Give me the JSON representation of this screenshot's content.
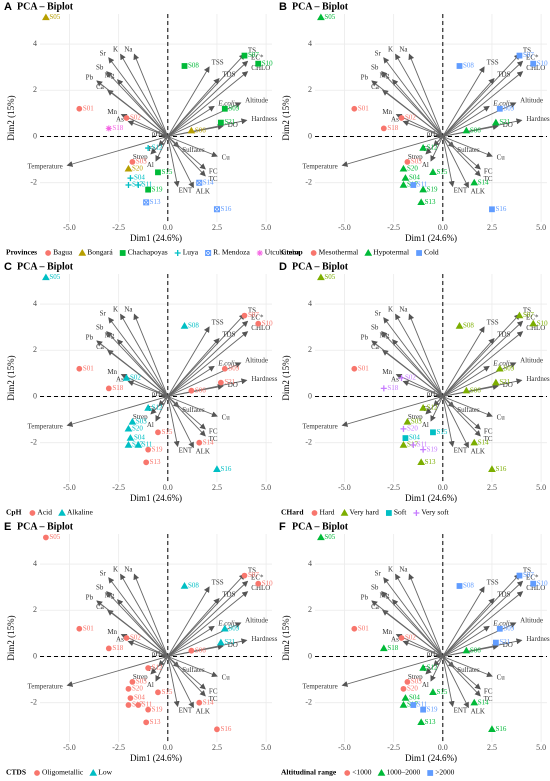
{
  "loadings": {
    "names": [
      "TS",
      "EC*",
      "CHLO",
      "TSS",
      "TDS",
      "Altitude",
      "E.coli",
      "Hardness",
      "DO",
      "Sulfates",
      "Cu",
      "FC",
      "TC",
      "ALK",
      "ENT",
      "Al",
      "Strep",
      "Fe",
      "pH",
      "Temperature",
      "As",
      "Mn",
      "Ca",
      "Pb",
      "Mg",
      "Sb",
      "Sr",
      "K",
      "Na"
    ],
    "x": [
      3.9,
      4.05,
      4.05,
      2.1,
      2.6,
      3.7,
      2.35,
      4.0,
      2.8,
      0.55,
      2.5,
      1.9,
      1.9,
      1.3,
      0.5,
      -0.6,
      -0.85,
      -0.45,
      -0.35,
      -5.1,
      -2.0,
      -2.35,
      -3.05,
      -3.6,
      -2.55,
      -3.1,
      -3.0,
      -2.4,
      -1.7
    ],
    "values": [
      3.55,
      3.25,
      2.8,
      3.0,
      2.5,
      1.45,
      1.3,
      0.7,
      0.45,
      -0.45,
      -0.85,
      -1.4,
      -1.7,
      -2.2,
      -2.15,
      -1.05,
      -0.75,
      -0.4,
      0.05,
      -1.25,
      0.65,
      0.95,
      2.0,
      2.4,
      2.45,
      2.8,
      3.4,
      3.55,
      3.55
    ]
  },
  "chart_data": [
    {
      "type": "scatter",
      "panel": "A",
      "title": "PCA – Biplot",
      "xlabel": "Dim1 (24.6%)",
      "ylabel": "Dim2 (15%)",
      "xlim": [
        -6.5,
        5.3
      ],
      "ylim": [
        -3.7,
        5.3
      ],
      "xticks": [
        {
          "value": -5,
          "label": "-5.0"
        },
        {
          "value": -2.5,
          "label": "-2.5"
        },
        {
          "value": 0,
          "label": "0.0"
        },
        {
          "value": 2.5,
          "label": "2.5"
        },
        {
          "value": 5,
          "label": "5.0"
        }
      ],
      "yticks": [
        -2,
        0,
        2,
        4
      ],
      "grid": true,
      "legend": "bottom",
      "legend_title": "Provinces",
      "series": [
        {
          "name": "Bagua",
          "color": "#f8766d",
          "labels": [
            "S01",
            "S02",
            "S03"
          ],
          "x": [
            -4.5,
            -2.1,
            -1.8
          ],
          "values": [
            1.2,
            0.8,
            -1.1
          ]
        },
        {
          "name": "Bongará",
          "color": "#b79f00",
          "labels": [
            "S05",
            "S06",
            "S20"
          ],
          "x": [
            -6.2,
            1.2,
            -2.0
          ],
          "values": [
            5.15,
            0.25,
            -1.4
          ]
        },
        {
          "name": "Chachapoyas",
          "color": "#00ba38",
          "labels": [
            "S07",
            "S08",
            "S09",
            "S10",
            "S21",
            "S15",
            "S19"
          ],
          "x": [
            3.9,
            0.85,
            2.9,
            4.6,
            2.7,
            -0.5,
            -1.0
          ],
          "values": [
            3.5,
            3.05,
            1.2,
            3.15,
            0.6,
            -1.55,
            -2.3
          ]
        },
        {
          "name": "Luya",
          "color": "#00bfc4",
          "labels": [
            "S12",
            "S04",
            "S17",
            "S11"
          ],
          "x": [
            -1.0,
            -1.9,
            -2.0,
            -1.5
          ],
          "values": [
            -0.5,
            -1.8,
            -2.1,
            -2.1
          ]
        },
        {
          "name": "R. Mendoza",
          "color": "#619cff",
          "labels": [
            "S13",
            "S14",
            "S16"
          ],
          "x": [
            -1.1,
            1.6,
            2.5
          ],
          "values": [
            -2.85,
            -2.0,
            -3.15
          ]
        },
        {
          "name": "Utcubamba",
          "color": "#f564e3",
          "labels": [
            "S18"
          ],
          "x": [
            -3.0
          ],
          "values": [
            0.35
          ]
        }
      ]
    },
    {
      "type": "scatter",
      "panel": "B",
      "title": "PCA – Biplot",
      "xlabel": "Dim1 (24.6%)",
      "ylabel": "Dim2 (15%)",
      "xlim": [
        -6.5,
        5.3
      ],
      "ylim": [
        -3.7,
        5.3
      ],
      "xticks": [
        {
          "value": -5,
          "label": "-5.0"
        },
        {
          "value": -2.5,
          "label": "-2.5"
        },
        {
          "value": 0,
          "label": "0.0"
        },
        {
          "value": 2.5,
          "label": "2.5"
        },
        {
          "value": 5,
          "label": "5.0"
        }
      ],
      "yticks": [
        -2,
        0,
        2,
        4
      ],
      "grid": true,
      "legend": "bottom",
      "legend_title": "Ctemp",
      "series": [
        {
          "name": "Mesothermal",
          "color": "#f8766d",
          "labels": [
            "S01",
            "S02",
            "S03",
            "S18"
          ],
          "x": [
            -4.5,
            -2.1,
            -1.8,
            -3.0
          ],
          "values": [
            1.2,
            0.8,
            -1.1,
            0.35
          ]
        },
        {
          "name": "Hypotermal",
          "color": "#00ba38",
          "labels": [
            "S04",
            "S05",
            "S06",
            "S12",
            "S13",
            "S14",
            "S15",
            "S17",
            "S19",
            "S20",
            "S21"
          ],
          "x": [
            -1.9,
            -6.2,
            1.2,
            -1.0,
            -1.1,
            1.6,
            -0.5,
            -2.0,
            -1.0,
            -2.0,
            2.7
          ],
          "values": [
            -1.8,
            5.15,
            0.25,
            -0.5,
            -2.85,
            -2.0,
            -1.55,
            -2.1,
            -2.3,
            -1.4,
            0.6
          ]
        },
        {
          "name": "Cold",
          "color": "#619cff",
          "labels": [
            "S07",
            "S08",
            "S09",
            "S10",
            "S11",
            "S16"
          ],
          "x": [
            3.9,
            0.85,
            2.9,
            4.6,
            -1.5,
            2.5
          ],
          "values": [
            3.5,
            3.05,
            1.2,
            3.15,
            -2.1,
            -3.15
          ]
        }
      ]
    },
    {
      "type": "scatter",
      "panel": "C",
      "title": "PCA – Biplot",
      "xlabel": "Dim1 (24.6%)",
      "ylabel": "Dim2 (15%)",
      "xlim": [
        -6.5,
        5.3
      ],
      "ylim": [
        -3.7,
        5.3
      ],
      "xticks": [
        {
          "value": -5,
          "label": "-5.0"
        },
        {
          "value": -2.5,
          "label": "-2.5"
        },
        {
          "value": 0,
          "label": "0.0"
        },
        {
          "value": 2.5,
          "label": "2.5"
        },
        {
          "value": 5,
          "label": "5.0"
        }
      ],
      "yticks": [
        -2,
        0,
        2,
        4
      ],
      "grid": true,
      "legend": "bottom",
      "legend_title": "CpH",
      "series": [
        {
          "name": "Acid",
          "color": "#f8766d",
          "labels": [
            "S01",
            "S06",
            "S07",
            "S09",
            "S10",
            "S13",
            "S14",
            "S15",
            "S18",
            "S19",
            "S21"
          ],
          "x": [
            -4.5,
            1.2,
            3.9,
            2.9,
            4.6,
            -1.1,
            1.6,
            -0.5,
            -3.0,
            -1.0,
            2.7
          ],
          "values": [
            1.2,
            0.25,
            3.5,
            1.2,
            3.15,
            -2.85,
            -2.0,
            -1.55,
            0.35,
            -2.3,
            0.6
          ]
        },
        {
          "name": "Alkaline",
          "color": "#00bfc4",
          "labels": [
            "S02",
            "S03",
            "S04",
            "S05",
            "S08",
            "S11",
            "S12",
            "S16",
            "S17",
            "S20"
          ],
          "x": [
            -2.1,
            -1.8,
            -1.9,
            -6.2,
            0.85,
            -1.5,
            -1.0,
            2.5,
            -2.0,
            -2.0
          ],
          "values": [
            0.8,
            -1.1,
            -1.8,
            5.15,
            3.05,
            -2.1,
            -0.5,
            -3.15,
            -2.1,
            -1.4
          ]
        }
      ]
    },
    {
      "type": "scatter",
      "panel": "D",
      "title": "PCA – Biplot",
      "xlabel": "Dim1 (24.6%)",
      "ylabel": "Dim2 (15%)",
      "xlim": [
        -6.5,
        5.3
      ],
      "ylim": [
        -3.7,
        5.3
      ],
      "xticks": [
        {
          "value": -5,
          "label": "-5.0"
        },
        {
          "value": -2.5,
          "label": "-2.5"
        },
        {
          "value": 0,
          "label": "0.0"
        },
        {
          "value": 2.5,
          "label": "2.5"
        },
        {
          "value": 5,
          "label": "5.0"
        }
      ],
      "yticks": [
        -2,
        0,
        2,
        4
      ],
      "grid": true,
      "legend": "bottom",
      "legend_title": "CHard",
      "series": [
        {
          "name": "Hard",
          "color": "#f8766d",
          "labels": [
            "S01"
          ],
          "x": [
            -4.5
          ],
          "values": [
            1.2
          ]
        },
        {
          "name": "Very hard",
          "color": "#7cae00",
          "labels": [
            "S03",
            "S05",
            "S06",
            "S07",
            "S08",
            "S09",
            "S10",
            "S12",
            "S13",
            "S14",
            "S16",
            "S17",
            "S21"
          ],
          "x": [
            -1.8,
            -6.2,
            1.2,
            3.9,
            0.85,
            2.9,
            4.6,
            -1.0,
            -1.1,
            1.6,
            2.5,
            -2.0,
            2.7
          ],
          "values": [
            -1.1,
            5.15,
            0.25,
            3.5,
            3.05,
            1.2,
            3.15,
            -0.5,
            -2.85,
            -2.0,
            -3.15,
            -2.1,
            0.6
          ]
        },
        {
          "name": "Soft",
          "color": "#00bfc4",
          "labels": [
            "S04",
            "S15"
          ],
          "x": [
            -1.9,
            -0.5
          ],
          "values": [
            -1.8,
            -1.55
          ]
        },
        {
          "name": "Very soft",
          "color": "#c77cff",
          "labels": [
            "S02",
            "S11",
            "S18",
            "S19",
            "S20"
          ],
          "x": [
            -2.1,
            -1.5,
            -3.0,
            -1.0,
            -2.0
          ],
          "values": [
            0.8,
            -2.1,
            0.35,
            -2.3,
            -1.4
          ]
        }
      ]
    },
    {
      "type": "scatter",
      "panel": "E",
      "title": "PCA – Biplot",
      "xlabel": "Dim1 (24.6%)",
      "ylabel": "Dim2 (15%)",
      "xlim": [
        -6.5,
        5.3
      ],
      "ylim": [
        -3.7,
        5.3
      ],
      "xticks": [
        {
          "value": -5,
          "label": "-5.0"
        },
        {
          "value": -2.5,
          "label": "-2.5"
        },
        {
          "value": 0,
          "label": "0.0"
        },
        {
          "value": 2.5,
          "label": "2.5"
        },
        {
          "value": 5,
          "label": "5.0"
        }
      ],
      "yticks": [
        -2,
        0,
        2,
        4
      ],
      "grid": true,
      "legend": "bottom",
      "legend_title": "CTDS",
      "series": [
        {
          "name": "Oligometallic",
          "color": "#f8766d",
          "labels": [
            "S01",
            "S02",
            "S03",
            "S04",
            "S05",
            "S06",
            "S07",
            "S10",
            "S11",
            "S12",
            "S13",
            "S14",
            "S15",
            "S16",
            "S17",
            "S18",
            "S19",
            "S20"
          ],
          "x": [
            -4.5,
            -2.1,
            -1.8,
            -1.9,
            -6.2,
            1.2,
            3.9,
            4.6,
            -1.5,
            -1.0,
            -1.1,
            1.6,
            -0.5,
            2.5,
            -2.0,
            -3.0,
            -1.0,
            -2.0
          ],
          "values": [
            1.2,
            0.8,
            -1.1,
            -1.8,
            5.15,
            0.25,
            3.5,
            3.15,
            -2.1,
            -0.5,
            -2.85,
            -2.0,
            -1.55,
            -3.15,
            -2.1,
            0.35,
            -2.3,
            -1.4
          ]
        },
        {
          "name": "Low",
          "color": "#00bfc4",
          "labels": [
            "S08",
            "S09",
            "S21"
          ],
          "x": [
            0.85,
            2.9,
            2.7
          ],
          "values": [
            3.05,
            1.2,
            0.6
          ]
        }
      ]
    },
    {
      "type": "scatter",
      "panel": "F",
      "title": "PCA – Biplot",
      "xlabel": "Dim1 (24.6%)",
      "ylabel": "Dim2 (15%)",
      "xlim": [
        -6.5,
        5.3
      ],
      "ylim": [
        -3.7,
        5.3
      ],
      "xticks": [
        {
          "value": -5,
          "label": "-5.0"
        },
        {
          "value": -2.5,
          "label": "-2.5"
        },
        {
          "value": 0,
          "label": "0.0"
        },
        {
          "value": 2.5,
          "label": "2.5"
        },
        {
          "value": 5,
          "label": "5.0"
        }
      ],
      "yticks": [
        -2,
        0,
        2,
        4
      ],
      "grid": true,
      "legend": "bottom",
      "legend_title": "Altitudinal range",
      "series": [
        {
          "name": "<1000",
          "color": "#f8766d",
          "labels": [
            "S01",
            "S02",
            "S03",
            "S20"
          ],
          "x": [
            -4.5,
            -2.1,
            -1.8,
            -2.0
          ],
          "values": [
            1.2,
            0.8,
            -1.1,
            -1.4
          ]
        },
        {
          "name": "1000–2000",
          "color": "#00ba38",
          "labels": [
            "S04",
            "S05",
            "S06",
            "S12",
            "S13",
            "S14",
            "S15",
            "S16",
            "S17",
            "S18"
          ],
          "x": [
            -1.9,
            -6.2,
            1.2,
            -1.0,
            -1.1,
            1.6,
            -0.5,
            2.5,
            -2.0,
            -3.0
          ],
          "values": [
            -1.8,
            5.15,
            0.25,
            -0.5,
            -2.85,
            -2.0,
            -1.55,
            -3.15,
            -2.1,
            0.35
          ]
        },
        {
          "name": ">2000",
          "color": "#619cff",
          "labels": [
            "S07",
            "S08",
            "S09",
            "S10",
            "S11",
            "S19",
            "S21"
          ],
          "x": [
            3.9,
            0.85,
            2.9,
            4.6,
            -1.5,
            -1.0,
            2.7
          ],
          "values": [
            3.5,
            3.05,
            1.2,
            3.15,
            -2.1,
            -2.3,
            0.6
          ]
        }
      ]
    }
  ]
}
